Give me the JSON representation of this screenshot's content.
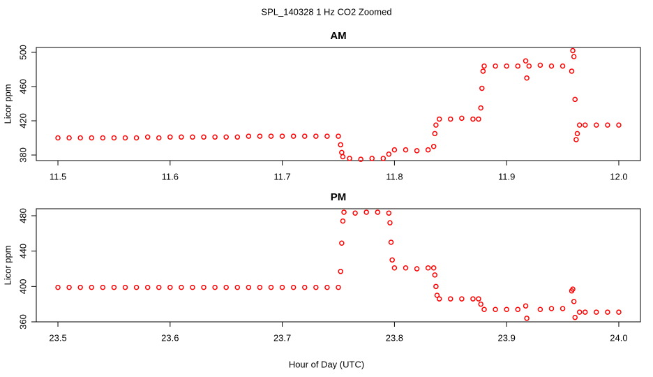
{
  "title": "SPL_140328  1 Hz CO2 Zoomed",
  "xlabel": "Hour of Day (UTC)",
  "chart_data": [
    {
      "type": "scatter",
      "title": "AM",
      "ylabel": "Licor ppm",
      "color": "#ff0000",
      "xlim": [
        11.4807,
        12.0193
      ],
      "ylim": [
        373.5,
        505.7
      ],
      "xticks": [
        11.5,
        11.6,
        11.7,
        11.8,
        11.9,
        {
          "value": 12,
          "label": "12.0"
        }
      ],
      "yticks": [
        380,
        420,
        460,
        500
      ],
      "x": [
        11.5,
        11.51,
        11.52,
        11.53,
        11.54,
        11.55,
        11.56,
        11.57,
        11.58,
        11.59,
        11.6,
        11.61,
        11.62,
        11.63,
        11.64,
        11.65,
        11.66,
        11.67,
        11.68,
        11.69,
        11.7,
        11.71,
        11.72,
        11.73,
        11.74,
        11.75,
        11.752,
        11.753,
        11.754,
        11.76,
        11.77,
        11.78,
        11.79,
        11.795,
        11.8,
        11.81,
        11.82,
        11.83,
        11.835,
        11.836,
        11.837,
        11.84,
        11.85,
        11.86,
        11.87,
        11.875,
        11.877,
        11.878,
        11.879,
        11.88,
        11.89,
        11.9,
        11.91,
        11.917,
        11.918,
        11.92,
        11.93,
        11.94,
        11.95,
        11.958,
        11.959,
        11.96,
        11.961,
        11.962,
        11.963,
        11.965,
        11.97,
        11.98,
        11.99,
        12.0
      ],
      "values": [
        400,
        400,
        400,
        400,
        400,
        400,
        400,
        400,
        401,
        400,
        401,
        401,
        401,
        401,
        401,
        401,
        401,
        402,
        402,
        402,
        402,
        402,
        402,
        402,
        402,
        402,
        392,
        383,
        378,
        376,
        375,
        376,
        376,
        381,
        386,
        386,
        385,
        386,
        390,
        405,
        415,
        422,
        422,
        423,
        422,
        422,
        435,
        458,
        478,
        484,
        484,
        484,
        484,
        490,
        470,
        484,
        485,
        484,
        484,
        478,
        502,
        495,
        445,
        398,
        405,
        415,
        415,
        415,
        415,
        415
      ]
    },
    {
      "type": "scatter",
      "title": "PM",
      "ylabel": "Licor ppm",
      "color": "#ff0000",
      "xlim": [
        23.4807,
        24.0193
      ],
      "ylim": [
        360,
        487.9
      ],
      "xticks": [
        23.5,
        23.6,
        23.7,
        23.8,
        23.9,
        {
          "value": 24,
          "label": "24.0"
        }
      ],
      "yticks": [
        360,
        400,
        440,
        480
      ],
      "x": [
        23.5,
        23.51,
        23.52,
        23.53,
        23.54,
        23.55,
        23.56,
        23.57,
        23.58,
        23.59,
        23.6,
        23.61,
        23.62,
        23.63,
        23.64,
        23.65,
        23.66,
        23.67,
        23.68,
        23.69,
        23.7,
        23.71,
        23.72,
        23.73,
        23.74,
        23.75,
        23.752,
        23.753,
        23.754,
        23.755,
        23.765,
        23.775,
        23.785,
        23.795,
        23.796,
        23.797,
        23.798,
        23.8,
        23.81,
        23.82,
        23.83,
        23.835,
        23.836,
        23.837,
        23.838,
        23.84,
        23.85,
        23.86,
        23.87,
        23.875,
        23.877,
        23.88,
        23.89,
        23.9,
        23.91,
        23.917,
        23.918,
        23.93,
        23.94,
        23.95,
        23.958,
        23.959,
        23.96,
        23.961,
        23.965,
        23.97,
        23.98,
        23.99,
        24.0
      ],
      "values": [
        399,
        399,
        399,
        399,
        399,
        399,
        399,
        399,
        399,
        399,
        399,
        399,
        399,
        399,
        399,
        399,
        399,
        399,
        399,
        399,
        399,
        399,
        399,
        399,
        399,
        399,
        417,
        449,
        474,
        484,
        483,
        484,
        484,
        483,
        472,
        450,
        430,
        421,
        421,
        420,
        421,
        421,
        413,
        400,
        390,
        386,
        386,
        386,
        386,
        386,
        380,
        374,
        374,
        374,
        374,
        378,
        364,
        374,
        375,
        375,
        395,
        397,
        383,
        365,
        371,
        371,
        371,
        371,
        371
      ]
    }
  ]
}
